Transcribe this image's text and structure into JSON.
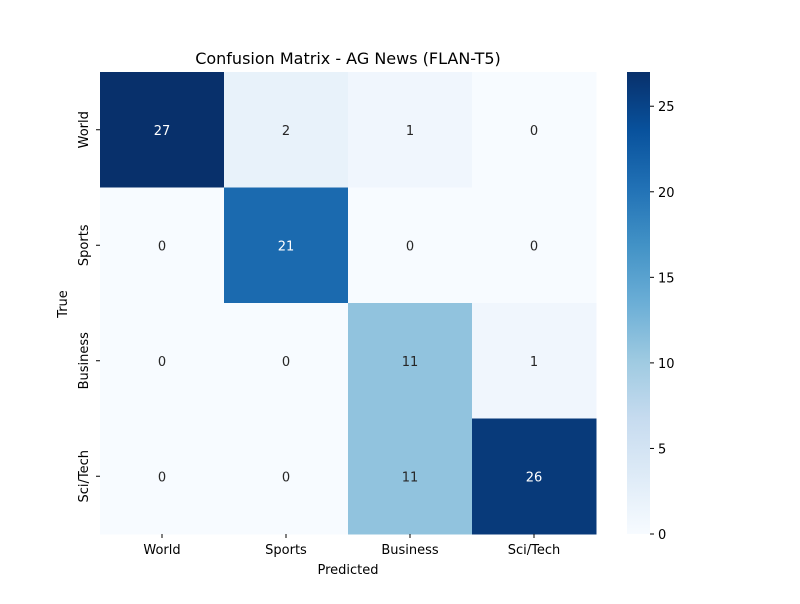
{
  "chart_data": {
    "type": "heatmap",
    "title": "Confusion Matrix - AG News (FLAN-T5)",
    "xlabel": "Predicted",
    "ylabel": "True",
    "x_categories": [
      "World",
      "Sports",
      "Business",
      "Sci/Tech"
    ],
    "y_categories": [
      "World",
      "Sports",
      "Business",
      "Sci/Tech"
    ],
    "values": [
      [
        27,
        2,
        1,
        0
      ],
      [
        0,
        21,
        0,
        0
      ],
      [
        0,
        0,
        11,
        1
      ],
      [
        0,
        0,
        11,
        26
      ]
    ],
    "colormap": "Blues",
    "color_range": [
      0,
      27
    ],
    "colorbar": {
      "ticks": [
        0,
        5,
        10,
        15,
        20,
        25
      ]
    },
    "annotations": true,
    "grid": false
  }
}
